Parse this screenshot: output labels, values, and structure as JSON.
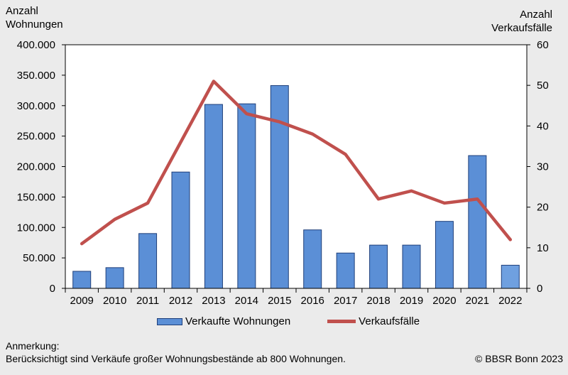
{
  "left_axis_title": [
    "Anzahl",
    "Wohnungen"
  ],
  "right_axis_title": [
    "Anzahl",
    "Verkaufsfälle"
  ],
  "note_title": "Anmerkung:",
  "note_text": "Berücksichtigt sind Verkäufe großer Wohnungsbestände ab 800 Wohnungen.",
  "copyright": "© BBSR Bonn 2023",
  "colors": {
    "bar": "#5b8fd6",
    "bar_border": "#1f3f7a",
    "bar_last": "#6fa0e0",
    "line": "#c0504d",
    "background": "#ebebeb",
    "plot": "#ffffff"
  },
  "chart_data": {
    "type": "bar+line",
    "categories": [
      "2009",
      "2010",
      "2011",
      "2012",
      "2013",
      "2014",
      "2015",
      "2016",
      "2017",
      "2018",
      "2019",
      "2020",
      "2021",
      "2022"
    ],
    "series": [
      {
        "name": "Verkaufte Wohnungen",
        "type": "bar",
        "axis": "left",
        "values": [
          28000,
          34000,
          90000,
          191000,
          302000,
          303000,
          333000,
          96000,
          58000,
          71000,
          71000,
          110000,
          218000,
          38000
        ]
      },
      {
        "name": "Verkaufsfälle",
        "type": "line",
        "axis": "right",
        "values": [
          11,
          17,
          21,
          36,
          51,
          43,
          41,
          38,
          33,
          22,
          24,
          21,
          22,
          12
        ]
      }
    ],
    "y_left": {
      "ylim": [
        0,
        400000
      ],
      "ticks": [
        "0",
        "50.000",
        "100.000",
        "150.000",
        "200.000",
        "250.000",
        "300.000",
        "350.000",
        "400.000"
      ]
    },
    "y_right": {
      "ylim": [
        0,
        60
      ],
      "ticks": [
        "0",
        "10",
        "20",
        "30",
        "40",
        "50",
        "60"
      ]
    },
    "grid": false,
    "legend": "bottom"
  }
}
